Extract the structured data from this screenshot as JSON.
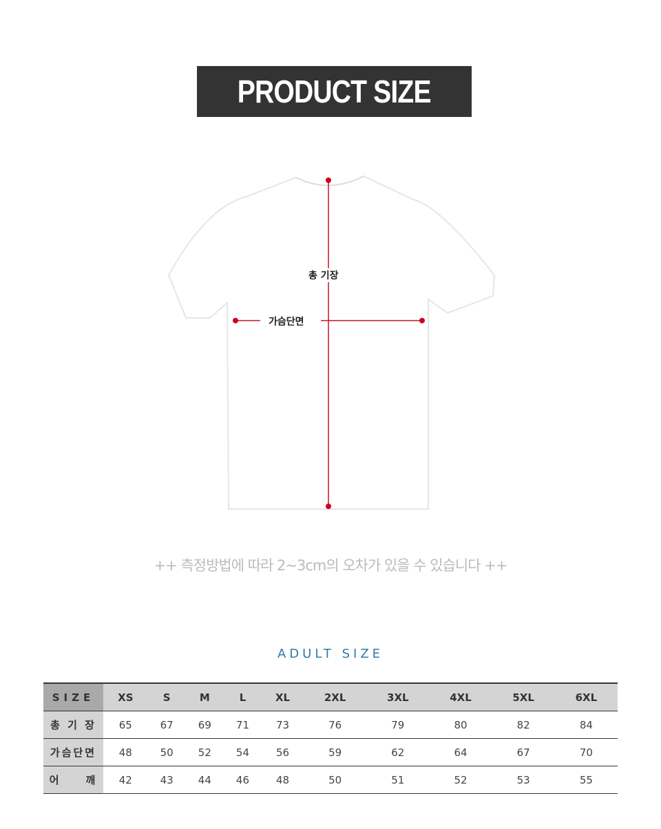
{
  "title": "PRODUCT SIZE",
  "diagram": {
    "length_label": "총 기장",
    "chest_label": "가슴단면",
    "line_color": "#d0021b"
  },
  "note": "++ 측정방법에 따라 2~3cm의 오차가 있을 수 있습니다 ++",
  "section_title": "ADULT SIZE",
  "table": {
    "header": [
      "SIZE",
      "XS",
      "S",
      "M",
      "L",
      "XL",
      "2XL",
      "3XL",
      "4XL",
      "5XL",
      "6XL"
    ],
    "rows": [
      {
        "label": "총 기 장",
        "values": [
          "65",
          "67",
          "69",
          "71",
          "73",
          "76",
          "79",
          "80",
          "82",
          "84"
        ]
      },
      {
        "label": "가슴단면",
        "values": [
          "48",
          "50",
          "52",
          "54",
          "56",
          "59",
          "62",
          "64",
          "67",
          "70"
        ]
      },
      {
        "label": "어　　깨",
        "values": [
          "42",
          "43",
          "44",
          "46",
          "48",
          "50",
          "51",
          "52",
          "53",
          "55"
        ]
      }
    ]
  }
}
